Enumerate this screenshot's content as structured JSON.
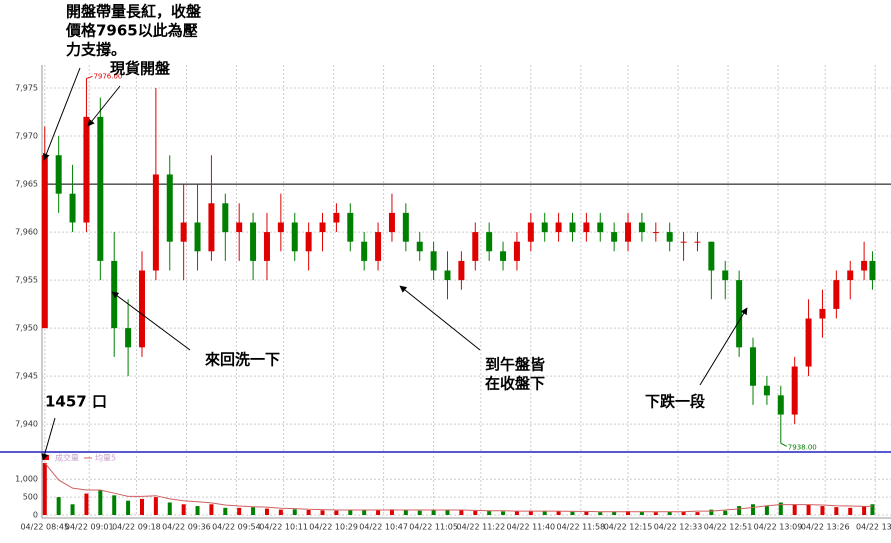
{
  "chart_data": {
    "type": "candlestick",
    "x": [
      0,
      5,
      10,
      15,
      20,
      25,
      30,
      35,
      40,
      45,
      50,
      55,
      60,
      65,
      70,
      75,
      80,
      85,
      90,
      95,
      100,
      105,
      110,
      115,
      120,
      125,
      130,
      135,
      140,
      145,
      150,
      155,
      160,
      165,
      170,
      175,
      180,
      185,
      190,
      195,
      200,
      205,
      210,
      215,
      220,
      225,
      230,
      235,
      240,
      245,
      250,
      255,
      260,
      265,
      270,
      275,
      280,
      285,
      290,
      295,
      298
    ],
    "open": [
      7950,
      7968,
      7964,
      7961,
      7972,
      7957,
      7950,
      7948,
      7956,
      7966,
      7959,
      7961,
      7958,
      7963,
      7960,
      7961,
      7957,
      7960,
      7961,
      7958,
      7960,
      7961,
      7962,
      7959,
      7957,
      7960,
      7962,
      7959,
      7958,
      7956,
      7955,
      7957,
      7960,
      7958,
      7957,
      7959,
      7961,
      7960,
      7961,
      7960,
      7961,
      7960,
      7959,
      7961,
      7960,
      7960,
      7959,
      7959,
      7959,
      7956,
      7955,
      7948,
      7944,
      7943,
      7941,
      7946,
      7951,
      7952,
      7955,
      7956,
      7957
    ],
    "high": [
      7971,
      7970,
      7967,
      7976,
      7974,
      7960,
      7953,
      7958,
      7975,
      7968,
      7965,
      7965,
      7968,
      7964,
      7963,
      7962,
      7962,
      7964,
      7962,
      7961,
      7962,
      7963,
      7963,
      7960,
      7961,
      7964,
      7963,
      7960,
      7959,
      7958,
      7958,
      7961,
      7961,
      7959,
      7960,
      7962,
      7962,
      7962,
      7962,
      7962,
      7962,
      7961,
      7962,
      7962,
      7961,
      7961,
      7960,
      7960,
      7959,
      7957,
      7956,
      7949,
      7945,
      7944,
      7947,
      7953,
      7954,
      7956,
      7957,
      7959,
      7958
    ],
    "low": [
      7950,
      7962,
      7960,
      7960,
      7955,
      7947,
      7945,
      7947,
      7955,
      7956,
      7955,
      7956,
      7957,
      7957,
      7957,
      7955,
      7955,
      7958,
      7957,
      7956,
      7958,
      7960,
      7958,
      7956,
      7956,
      7959,
      7958,
      7957,
      7955,
      7953,
      7954,
      7956,
      7957,
      7956,
      7956,
      7958,
      7959,
      7959,
      7959,
      7959,
      7959,
      7958,
      7958,
      7959,
      7959,
      7958,
      7957,
      7958,
      7953,
      7953,
      7947,
      7942,
      7942,
      7938,
      7940,
      7945,
      7949,
      7951,
      7953,
      7955,
      7954
    ],
    "close": [
      7968,
      7964,
      7961,
      7972,
      7957,
      7950,
      7948,
      7956,
      7966,
      7959,
      7961,
      7958,
      7963,
      7960,
      7961,
      7957,
      7960,
      7961,
      7958,
      7960,
      7961,
      7962,
      7959,
      7957,
      7960,
      7962,
      7959,
      7958,
      7956,
      7955,
      7957,
      7960,
      7958,
      7957,
      7959,
      7961,
      7960,
      7961,
      7960,
      7961,
      7960,
      7959,
      7961,
      7960,
      7960,
      7959,
      7959,
      7959,
      7956,
      7955,
      7948,
      7944,
      7943,
      7941,
      7946,
      7951,
      7952,
      7955,
      7956,
      7957,
      7955
    ],
    "up_color": "#e00000",
    "down_color": "#008000",
    "xlim": [
      -1,
      300
    ],
    "xticks": [
      {
        "value": 0,
        "label": "04/22 08:45"
      },
      {
        "value": 16,
        "label": "04/22 09:01"
      },
      {
        "value": 33,
        "label": "04/22 09:18"
      },
      {
        "value": 51,
        "label": "04/22 09:36"
      },
      {
        "value": 69,
        "label": "04/22 09:54"
      },
      {
        "value": 86,
        "label": "04/22 10:11"
      },
      {
        "value": 104,
        "label": "04/22 10:29"
      },
      {
        "value": 122,
        "label": "04/22 10:47"
      },
      {
        "value": 140,
        "label": "04/22 11:05"
      },
      {
        "value": 157,
        "label": "04/22 11:22"
      },
      {
        "value": 175,
        "label": "04/22 11:40"
      },
      {
        "value": 193,
        "label": "04/22 11:58"
      },
      {
        "value": 210,
        "label": "04/22 12:15"
      },
      {
        "value": 228,
        "label": "04/22 12:33"
      },
      {
        "value": 246,
        "label": "04/22 12:51"
      },
      {
        "value": 264,
        "label": "04/22 13:09"
      },
      {
        "value": 281,
        "label": "04/22 13:26"
      },
      {
        "value": 299,
        "label": "04/22 13:"
      }
    ],
    "ylim": [
      7937.1,
      7977.4
    ],
    "yticks": [
      {
        "value": 7940,
        "label": "7,940"
      },
      {
        "value": 7945,
        "label": "7,945"
      },
      {
        "value": 7950,
        "label": "7,950"
      },
      {
        "value": 7955,
        "label": "7,955"
      },
      {
        "value": 7960,
        "label": "7,960"
      },
      {
        "value": 7965,
        "label": "7,965"
      },
      {
        "value": 7970,
        "label": "7,970"
      },
      {
        "value": 7975,
        "label": "7,975"
      }
    ],
    "grid": true,
    "reference_line": 7965,
    "high_label": {
      "value": 7976,
      "label": "7976.00"
    },
    "low_label": {
      "value": 7938,
      "label": "7938.00"
    },
    "annotations": [
      {
        "lines": [
          "開盤帶量長紅，收盤",
          "價格7965以此為壓",
          "力支撐。"
        ]
      },
      {
        "lines": [
          "現貨開盤"
        ]
      },
      {
        "lines": [
          "來回洗一下"
        ]
      },
      {
        "lines": [
          "到午盤皆",
          "在收盤下"
        ]
      },
      {
        "lines": [
          "下跌一段"
        ]
      },
      {
        "lines": [
          "1457 口"
        ]
      }
    ],
    "volume": {
      "ylim": [
        0,
        1650
      ],
      "yticks": [
        0,
        500,
        {
          "value": 1000,
          "label": "1,000"
        }
      ],
      "series": [
        {
          "name": "成交量",
          "color": "#e00000",
          "values": [
            1457,
            500,
            300,
            600,
            700,
            550,
            400,
            450,
            500,
            350,
            300,
            250,
            300,
            200,
            200,
            220,
            180,
            150,
            160,
            140,
            130,
            120,
            130,
            150,
            140,
            160,
            130,
            120,
            140,
            150,
            130,
            120,
            110,
            100,
            110,
            120,
            100,
            100,
            90,
            90,
            80,
            100,
            110,
            90,
            80,
            90,
            100,
            80,
            150,
            120,
            250,
            300,
            250,
            350,
            300,
            280,
            250,
            220,
            200,
            250,
            300
          ]
        },
        {
          "name": "均量5",
          "color": "#d06060",
          "values": [
            1457,
            980,
            750,
            700,
            700,
            610,
            520,
            520,
            540,
            450,
            400,
            370,
            340,
            280,
            250,
            230,
            220,
            190,
            180,
            160,
            150,
            140,
            140,
            140,
            140,
            140,
            140,
            140,
            140,
            140,
            140,
            130,
            120,
            120,
            110,
            110,
            110,
            110,
            100,
            100,
            90,
            90,
            90,
            90,
            90,
            90,
            90,
            110,
            110,
            140,
            170,
            210,
            260,
            290,
            290,
            290,
            280,
            260,
            250,
            240,
            240
          ]
        }
      ]
    }
  }
}
